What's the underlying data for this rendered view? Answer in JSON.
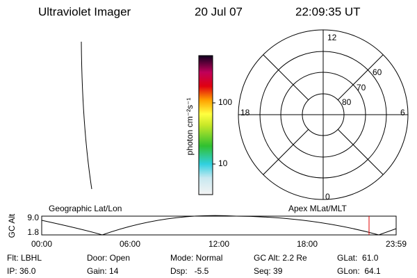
{
  "header": {
    "title": "Ultraviolet Imager",
    "date": "20 Jul 07",
    "time": "22:09:35 UT"
  },
  "colorbar": {
    "label": "photon cm⁻²s⁻¹",
    "ticks": [
      "100",
      "10"
    ]
  },
  "polar": {
    "mlt_labels": [
      "12",
      "18",
      "6",
      "0"
    ],
    "lat_labels": [
      "60",
      "70",
      "80"
    ]
  },
  "orbit": {
    "y_label": "GC Alt",
    "y_ticks": [
      "9.0",
      "1.8"
    ],
    "left_title": "Geographic Lat/Lon",
    "right_title": "Apex MLat/MLT",
    "x_ticks": [
      "00:00",
      "06:00",
      "12:00",
      "18:00",
      "23:59"
    ]
  },
  "info": {
    "rows": [
      [
        "Flt: LBHL",
        "Door: Open",
        "Mode: Normal",
        "GC Alt: 2.2 Re",
        "GLat:  61.0"
      ],
      [
        "IP: 36.0",
        "Gain: 14",
        "Dsp:   -5.5",
        "Seq: 39",
        "GLon:  64.1"
      ]
    ]
  }
}
